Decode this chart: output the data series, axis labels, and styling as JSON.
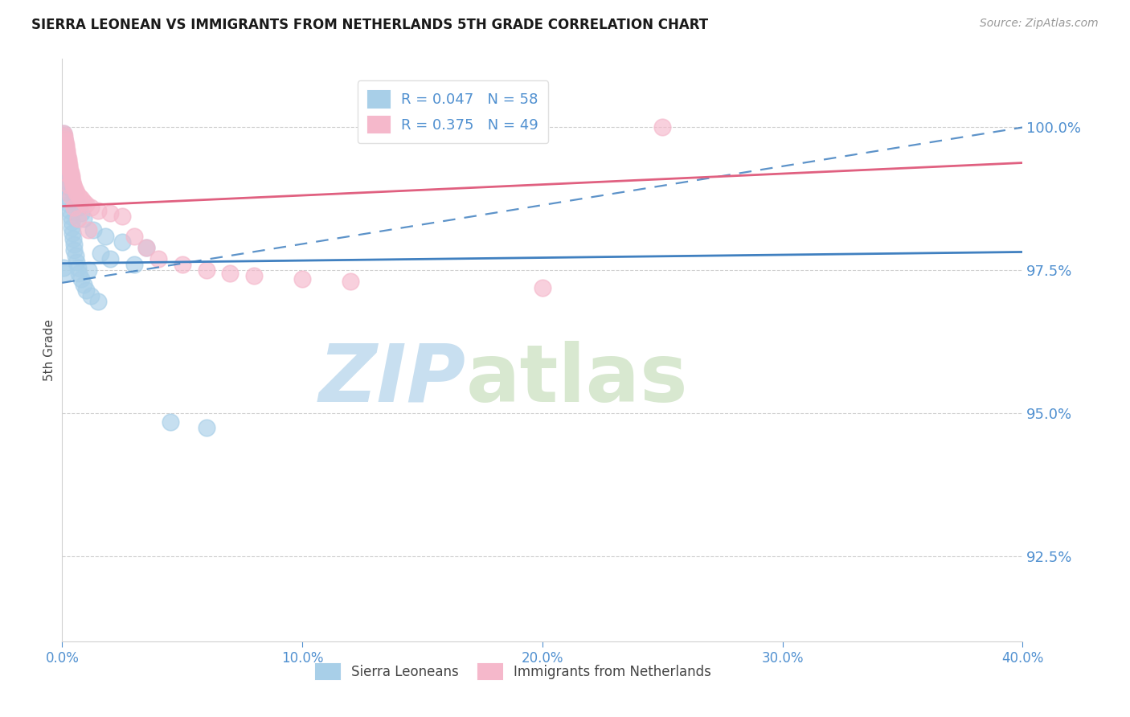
{
  "title": "SIERRA LEONEAN VS IMMIGRANTS FROM NETHERLANDS 5TH GRADE CORRELATION CHART",
  "source": "Source: ZipAtlas.com",
  "ylabel": "5th Grade",
  "xmin": 0.0,
  "xmax": 40.0,
  "ymin": 91.0,
  "ymax": 101.2,
  "yticks": [
    92.5,
    95.0,
    97.5,
    100.0
  ],
  "ytick_labels": [
    "92.5%",
    "95.0%",
    "97.5%",
    "100.0%"
  ],
  "xtick_vals": [
    0.0,
    10.0,
    20.0,
    30.0,
    40.0
  ],
  "xtick_labels": [
    "0.0%",
    "10.0%",
    "20.0%",
    "30.0%",
    "40.0%"
  ],
  "legend_r1": "0.047",
  "legend_n1": "58",
  "legend_r2": "0.375",
  "legend_n2": "49",
  "blue_scatter_color": "#a8cfe8",
  "pink_scatter_color": "#f5b8cb",
  "blue_line_color": "#4080c0",
  "pink_line_color": "#e06080",
  "blue_fill_color": "#a8cfe8",
  "pink_fill_color": "#f5b8cb",
  "axis_text_color": "#5090d0",
  "grid_color": "#d0d0d0",
  "title_color": "#1a1a1a",
  "source_color": "#999999",
  "watermark_zip": "ZIP",
  "watermark_atlas": "atlas",
  "watermark_color_zip": "#c8dff0",
  "watermark_color_atlas": "#d8e8d0",
  "blue_solid_y0": 97.62,
  "blue_solid_y1": 97.82,
  "blue_dash_y0": 97.28,
  "blue_dash_y1": 100.0,
  "pink_solid_y0": 98.62,
  "pink_solid_y1": 99.38,
  "legend_label1": "R = 0.047   N = 58",
  "legend_label2": "R = 0.375   N = 49",
  "bottom_label1": "Sierra Leoneans",
  "bottom_label2": "Immigrants from Netherlands",
  "blue_scatter_x": [
    0.05,
    0.08,
    0.1,
    0.12,
    0.14,
    0.16,
    0.18,
    0.2,
    0.22,
    0.24,
    0.26,
    0.28,
    0.3,
    0.32,
    0.35,
    0.38,
    0.4,
    0.42,
    0.45,
    0.48,
    0.5,
    0.55,
    0.6,
    0.65,
    0.7,
    0.8,
    0.9,
    1.0,
    1.2,
    1.5,
    0.06,
    0.09,
    0.11,
    0.15,
    0.19,
    0.23,
    0.27,
    0.31,
    0.36,
    0.41,
    0.46,
    0.52,
    0.58,
    0.68,
    0.78,
    0.88,
    1.3,
    1.8,
    2.5,
    3.5,
    1.6,
    2.0,
    3.0,
    4.5,
    6.0,
    1.1,
    0.07,
    0.13
  ],
  "blue_scatter_y": [
    99.85,
    99.75,
    99.65,
    99.55,
    99.45,
    99.35,
    99.25,
    99.15,
    99.05,
    98.95,
    98.85,
    98.75,
    98.65,
    98.55,
    98.45,
    98.35,
    98.25,
    98.15,
    98.05,
    97.95,
    97.85,
    97.75,
    97.65,
    97.55,
    97.45,
    97.35,
    97.25,
    97.15,
    97.05,
    96.95,
    99.9,
    99.8,
    99.7,
    99.6,
    99.5,
    99.4,
    99.3,
    99.2,
    99.1,
    99.0,
    98.9,
    98.8,
    98.7,
    98.6,
    98.5,
    98.4,
    98.2,
    98.1,
    98.0,
    97.9,
    97.8,
    97.7,
    97.6,
    94.85,
    94.75,
    97.5,
    97.55,
    97.45
  ],
  "pink_scatter_x": [
    0.05,
    0.08,
    0.1,
    0.12,
    0.14,
    0.16,
    0.18,
    0.2,
    0.22,
    0.24,
    0.26,
    0.28,
    0.3,
    0.32,
    0.35,
    0.38,
    0.4,
    0.42,
    0.45,
    0.5,
    0.55,
    0.6,
    0.7,
    0.8,
    0.9,
    1.0,
    1.2,
    1.5,
    2.0,
    2.5,
    3.0,
    3.5,
    4.0,
    5.0,
    6.0,
    7.0,
    8.0,
    10.0,
    12.0,
    20.0,
    0.07,
    0.11,
    0.15,
    0.25,
    0.36,
    0.48,
    0.65,
    1.1,
    25.0
  ],
  "pink_scatter_y": [
    99.9,
    99.85,
    99.8,
    99.75,
    99.7,
    99.65,
    99.6,
    99.55,
    99.5,
    99.45,
    99.4,
    99.35,
    99.3,
    99.25,
    99.2,
    99.15,
    99.1,
    99.05,
    99.0,
    98.95,
    98.9,
    98.85,
    98.8,
    98.75,
    98.7,
    98.65,
    98.6,
    98.55,
    98.5,
    98.45,
    98.1,
    97.9,
    97.7,
    97.6,
    97.5,
    97.45,
    97.4,
    97.35,
    97.3,
    97.2,
    99.55,
    99.4,
    99.2,
    99.0,
    98.8,
    98.6,
    98.4,
    98.2,
    100.0
  ]
}
